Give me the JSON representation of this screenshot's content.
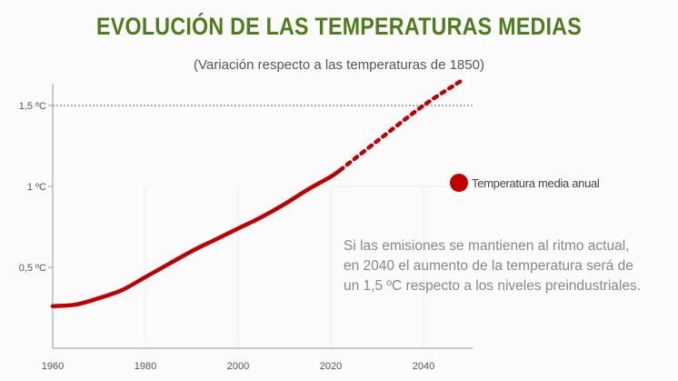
{
  "chart_data": {
    "type": "line",
    "title": "EVOLUCIÓN DE LAS TEMPERATURAS MEDIAS",
    "subtitle": "(Variación respecto a las temperaturas de 1850)",
    "xlabel": "",
    "ylabel": "",
    "xlim": [
      1960,
      2050
    ],
    "ylim": [
      0,
      1.7
    ],
    "x_ticks": [
      "1960",
      "1980",
      "2000",
      "2020",
      "2040"
    ],
    "x_tick_values": [
      1960,
      1980,
      2000,
      2020,
      2040
    ],
    "y_ticks": [
      "0,5 ºC",
      "1 ºC",
      "1,5 ºC"
    ],
    "y_tick_values": [
      0.5,
      1,
      1.5
    ],
    "grid": "vertical light lines",
    "reference_line": {
      "value": 1.5,
      "style": "dotted"
    },
    "series": [
      {
        "name": "Temperatura media anual",
        "style": "solid",
        "color": "#c00000",
        "x": [
          1960,
          1965,
          1970,
          1975,
          1980,
          1985,
          1990,
          1995,
          2000,
          2005,
          2010,
          2015,
          2020,
          2022
        ],
        "y": [
          0.26,
          0.27,
          0.31,
          0.36,
          0.44,
          0.52,
          0.6,
          0.67,
          0.74,
          0.81,
          0.89,
          0.98,
          1.06,
          1.1
        ]
      },
      {
        "style": "dotted",
        "color": "#c00000",
        "x": [
          2022,
          2030,
          2040,
          2048
        ],
        "y": [
          1.1,
          1.28,
          1.5,
          1.65
        ]
      }
    ],
    "legend": {
      "label": "Temperatura media anual",
      "placement": "right"
    },
    "annotation": [
      "Si las emisiones se mantienen al ritmo actual,",
      "en 2040 el aumento de la temperatura será de",
      "un 1,5 ºC respecto a los niveles preindustriales."
    ]
  }
}
